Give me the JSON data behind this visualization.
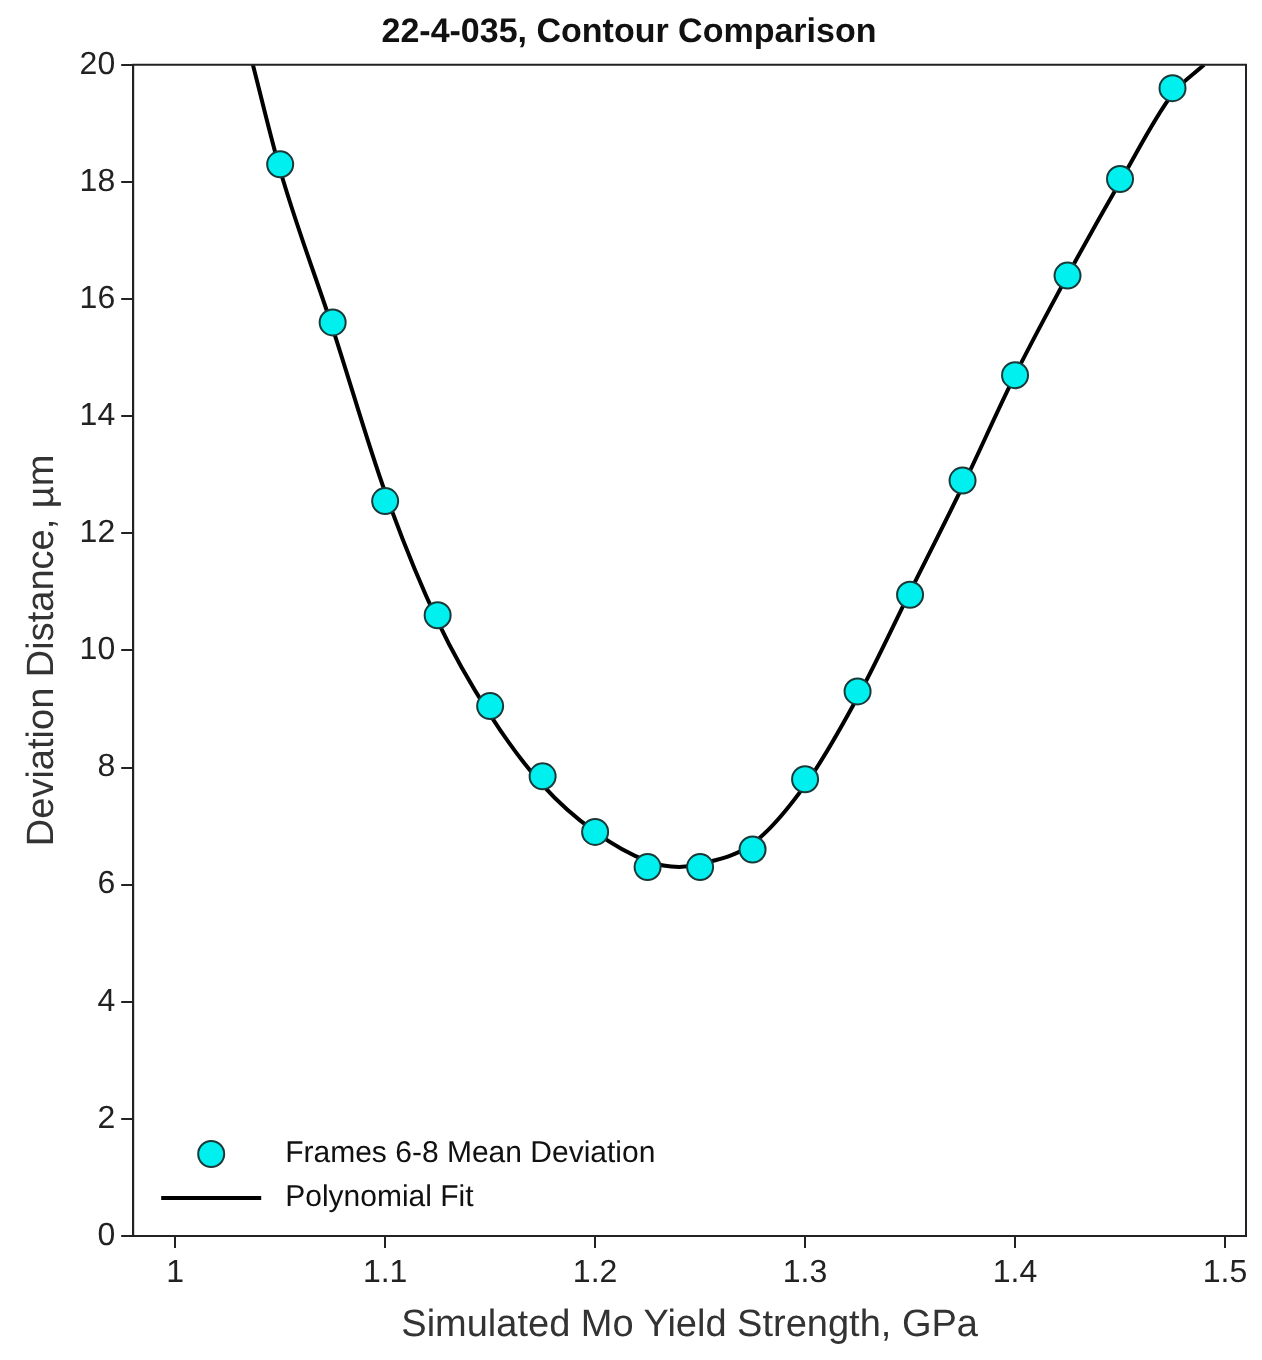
{
  "chart_data": {
    "type": "scatter",
    "title": "22-4-035, Contour Comparison",
    "xlabel": "Simulated Mo Yield Strength, GPa",
    "ylabel": "Deviation Distance, µm",
    "xlim": [
      0.98,
      1.51
    ],
    "ylim": [
      0,
      20
    ],
    "xticks": [
      1,
      1.1,
      1.2,
      1.3,
      1.4,
      1.5
    ],
    "yticks": [
      0,
      2,
      4,
      6,
      8,
      10,
      12,
      14,
      16,
      18,
      20
    ],
    "legend": "bottom left",
    "series": [
      {
        "name": "Frames 6-8 Mean Deviation",
        "type": "scatter",
        "marker": "circle",
        "color": "#00f0f0",
        "x": [
          1.05,
          1.075,
          1.1,
          1.125,
          1.15,
          1.175,
          1.2,
          1.225,
          1.25,
          1.275,
          1.3,
          1.325,
          1.35,
          1.375,
          1.4,
          1.425,
          1.45,
          1.475
        ],
        "values": [
          18.3,
          15.6,
          12.55,
          10.6,
          9.05,
          7.85,
          6.9,
          6.3,
          6.3,
          6.6,
          7.8,
          9.3,
          10.95,
          12.9,
          14.7,
          16.4,
          18.05,
          19.6
        ]
      },
      {
        "name": "Polynomial Fit",
        "type": "line",
        "marker": "none",
        "color": "#000000",
        "line_style": "solid",
        "x": [
          1.037,
          1.05,
          1.075,
          1.1,
          1.125,
          1.15,
          1.175,
          1.2,
          1.225,
          1.24,
          1.25,
          1.275,
          1.3,
          1.325,
          1.35,
          1.375,
          1.4,
          1.425,
          1.45,
          1.475,
          1.49
        ],
        "values": [
          20,
          18.2,
          15.5,
          12.7,
          10.5,
          8.9,
          7.7,
          6.9,
          6.4,
          6.3,
          6.35,
          6.7,
          7.7,
          9.2,
          11,
          12.8,
          14.7,
          16.4,
          18,
          19.5,
          20
        ]
      }
    ]
  }
}
